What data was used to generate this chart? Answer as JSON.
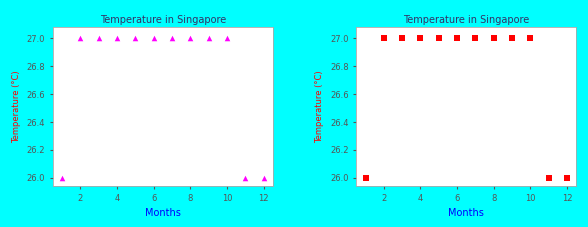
{
  "title": "Temperature in Singapore",
  "xlabel": "Months",
  "ylabel": "Temperature (°C)",
  "months": [
    1,
    2,
    3,
    4,
    5,
    6,
    7,
    8,
    9,
    10,
    11,
    12
  ],
  "temperatures": [
    26.0,
    27.0,
    27.0,
    27.0,
    27.0,
    27.0,
    27.0,
    27.0,
    27.0,
    27.0,
    26.0,
    26.0
  ],
  "ylim": [
    25.94,
    27.08
  ],
  "xlim": [
    0.5,
    12.5
  ],
  "yticks": [
    26.0,
    26.2,
    26.4,
    26.6,
    26.8,
    27.0
  ],
  "xticks": [
    2,
    4,
    6,
    8,
    10,
    12
  ],
  "left_marker": "^",
  "left_color": "#ff00ff",
  "right_marker": "s",
  "right_color": "#ff0000",
  "marker_size": 4,
  "bg_color": "#00ffff",
  "title_color": "#333366",
  "xlabel_color": "#0000ff",
  "ylabel_color": "#ff0000",
  "tick_color": "#555555",
  "tick_fontsize": 6,
  "label_fontsize": 7,
  "title_fontsize": 7
}
